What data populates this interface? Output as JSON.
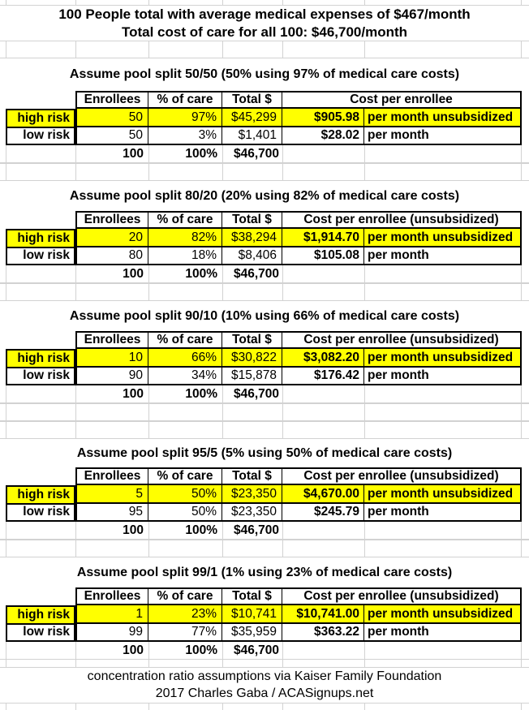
{
  "page": {
    "title_line1": "100 People total with average medical expenses of $467/month",
    "title_line2": "Total cost of care for all 100: $46,700/month",
    "footer_line1": "concentration ratio assumptions via Kaiser Family Foundation",
    "footer_line2": "2017 Charles Gaba / ACASignups.net"
  },
  "colors": {
    "highlight_yellow": "#ffff00",
    "gridline_gray": "#d2d2d2",
    "table_border": "#000000"
  },
  "columns": {
    "enrollees": "Enrollees",
    "pct": "% of care",
    "total": "Total $"
  },
  "sections": [
    {
      "heading": "Assume pool split 50/50 (50% using 97% of medical care costs)",
      "cost_header": "Cost per enrollee",
      "rows": [
        {
          "label": "high risk",
          "enrollees": "50",
          "pct": "97%",
          "total": "$45,299",
          "cost": "$905.98",
          "period": "per month unsubsidized"
        },
        {
          "label": "low risk",
          "enrollees": "50",
          "pct": "3%",
          "total": "$1,401",
          "cost": "$28.02",
          "period": "per month"
        }
      ],
      "totals": {
        "enrollees": "100",
        "pct": "100%",
        "total": "$46,700"
      }
    },
    {
      "heading": "Assume pool split 80/20 (20% using 82% of medical care costs)",
      "cost_header": "Cost per enrollee (unsubsidized)",
      "rows": [
        {
          "label": "high risk",
          "enrollees": "20",
          "pct": "82%",
          "total": "$38,294",
          "cost": "$1,914.70",
          "period": "per month unsubsidized"
        },
        {
          "label": "low risk",
          "enrollees": "80",
          "pct": "18%",
          "total": "$8,406",
          "cost": "$105.08",
          "period": "per month"
        }
      ],
      "totals": {
        "enrollees": "100",
        "pct": "100%",
        "total": "$46,700"
      }
    },
    {
      "heading": "Assume pool split 90/10 (10% using 66% of medical care costs)",
      "cost_header": "Cost per enrollee (unsubsidized)",
      "rows": [
        {
          "label": "high risk",
          "enrollees": "10",
          "pct": "66%",
          "total": "$30,822",
          "cost": "$3,082.20",
          "period": "per month unsubsidized"
        },
        {
          "label": "low risk",
          "enrollees": "90",
          "pct": "34%",
          "total": "$15,878",
          "cost": "$176.42",
          "period": "per month"
        }
      ],
      "totals": {
        "enrollees": "100",
        "pct": "100%",
        "total": "$46,700"
      }
    },
    {
      "heading": "Assume pool split 95/5 (5% using 50% of medical care costs)",
      "cost_header": "Cost per enrollee (unsubsidized)",
      "rows": [
        {
          "label": "high risk",
          "enrollees": "5",
          "pct": "50%",
          "total": "$23,350",
          "cost": "$4,670.00",
          "period": "per month unsubsidized"
        },
        {
          "label": "low risk",
          "enrollees": "95",
          "pct": "50%",
          "total": "$23,350",
          "cost": "$245.79",
          "period": "per month"
        }
      ],
      "totals": {
        "enrollees": "100",
        "pct": "100%",
        "total": "$46,700"
      }
    },
    {
      "heading": "Assume pool split 99/1 (1% using 23% of medical care costs)",
      "cost_header": "Cost per enrollee (unsubsidized)",
      "rows": [
        {
          "label": "high risk",
          "enrollees": "1",
          "pct": "23%",
          "total": "$10,741",
          "cost": "$10,741.00",
          "period": "per month unsubsidized"
        },
        {
          "label": "low risk",
          "enrollees": "99",
          "pct": "77%",
          "total": "$35,959",
          "cost": "$363.22",
          "period": "per month"
        }
      ],
      "totals": {
        "enrollees": "100",
        "pct": "100%",
        "total": "$46,700"
      }
    }
  ]
}
